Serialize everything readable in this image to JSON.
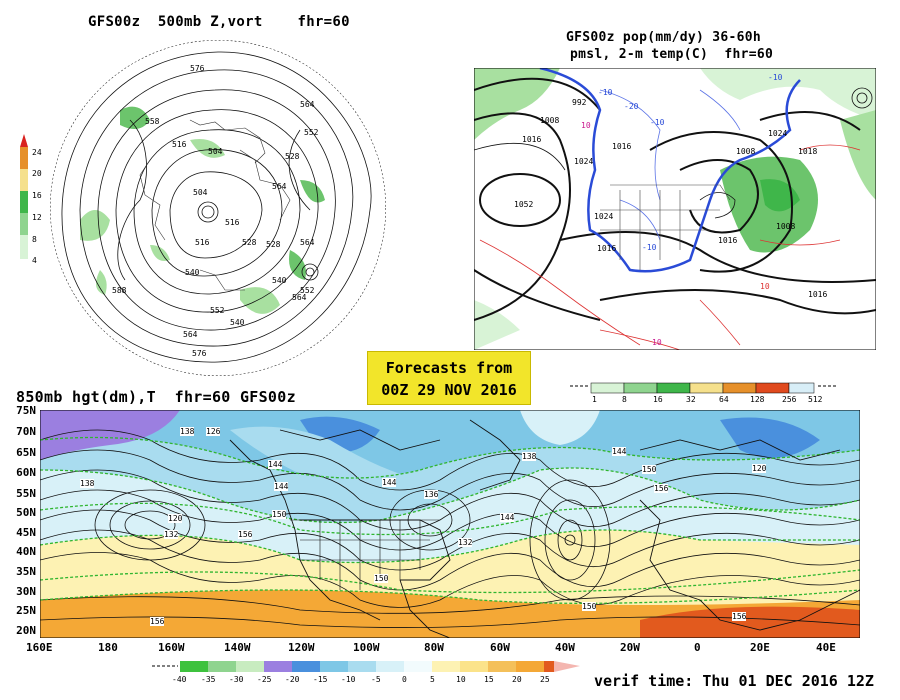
{
  "polar_panel": {
    "title": "GFS00z  500mb Z,vort    fhr=60",
    "colorbar_ticks": [
      "24",
      "20",
      "16",
      "12",
      "8",
      "4"
    ],
    "contour_labels": [
      "576",
      "564",
      "558",
      "516",
      "504",
      "528",
      "552",
      "528",
      "516",
      "504",
      "516",
      "528",
      "540",
      "564",
      "540",
      "552",
      "564",
      "588",
      "552",
      "564",
      "540",
      "576",
      "564"
    ]
  },
  "pop_panel": {
    "title_line1": "GFS00z pop(mm/dy) 36-60h",
    "title_line2": "pmsl, 2-m temp(C)  fhr=60",
    "isobar_labels": [
      "992",
      "1008",
      "1016",
      "1024",
      "1052",
      "1016",
      "1024",
      "1016",
      "1008",
      "1016",
      "1008",
      "1016",
      "1018",
      "1024"
    ],
    "temp_labels": [
      "-10",
      "-20",
      "-10",
      "-10",
      "10",
      "-10",
      "10",
      "10"
    ],
    "colorbar_ticks": [
      "1",
      "8",
      "16",
      "32",
      "64",
      "128",
      "256",
      "512"
    ]
  },
  "forecast_box": {
    "line1": "Forecasts from",
    "line2": "00Z 29 NOV 2016"
  },
  "main_panel": {
    "title": "850mb hgt(dm),T  fhr=60 GFS00z",
    "lat_labels": [
      "75N",
      "70N",
      "65N",
      "60N",
      "55N",
      "50N",
      "45N",
      "40N",
      "35N",
      "30N",
      "25N",
      "20N"
    ],
    "lon_labels": [
      "160E",
      "180",
      "160W",
      "140W",
      "120W",
      "100W",
      "80W",
      "60W",
      "40W",
      "20W",
      "0",
      "20E",
      "40E"
    ],
    "contour_labels": [
      "138",
      "126",
      "138",
      "144",
      "120",
      "132",
      "156",
      "150",
      "156",
      "144",
      "138",
      "132",
      "150",
      "144",
      "136",
      "144",
      "144",
      "150",
      "156",
      "120",
      "150",
      "156"
    ],
    "colorbar_ticks": [
      "-40",
      "-35",
      "-30",
      "-25",
      "-20",
      "-15",
      "-10",
      "-5",
      "0",
      "5",
      "10",
      "15",
      "20",
      "25"
    ]
  },
  "verif_time": "verif time: Thu 01 DEC 2016 12Z"
}
